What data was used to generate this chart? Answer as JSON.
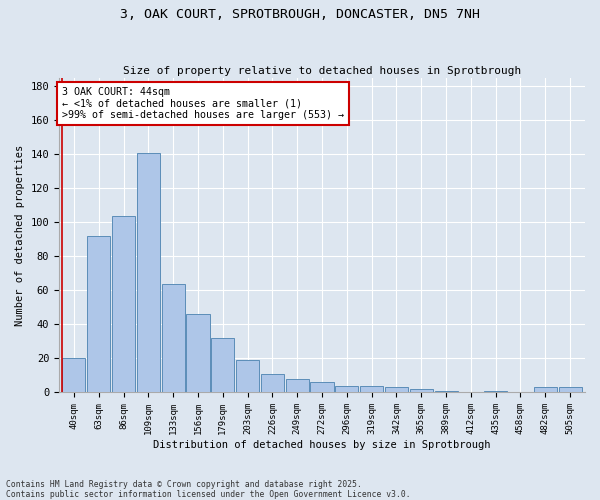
{
  "title1": "3, OAK COURT, SPROTBROUGH, DONCASTER, DN5 7NH",
  "title2": "Size of property relative to detached houses in Sprotbrough",
  "xlabel": "Distribution of detached houses by size in Sprotbrough",
  "ylabel": "Number of detached properties",
  "categories": [
    "40sqm",
    "63sqm",
    "86sqm",
    "109sqm",
    "133sqm",
    "156sqm",
    "179sqm",
    "203sqm",
    "226sqm",
    "249sqm",
    "272sqm",
    "296sqm",
    "319sqm",
    "342sqm",
    "365sqm",
    "389sqm",
    "412sqm",
    "435sqm",
    "458sqm",
    "482sqm",
    "505sqm"
  ],
  "values": [
    20,
    92,
    104,
    141,
    64,
    46,
    32,
    19,
    11,
    8,
    6,
    4,
    4,
    3,
    2,
    1,
    0,
    1,
    0,
    3,
    3
  ],
  "bar_color": "#aec6e8",
  "bar_edge_color": "#5b8db8",
  "background_color": "#dde6f0",
  "annotation_text": "3 OAK COURT: 44sqm\n← <1% of detached houses are smaller (1)\n>99% of semi-detached houses are larger (553) →",
  "annotation_box_color": "#ffffff",
  "annotation_box_edge": "#cc0000",
  "vline_color": "#cc0000",
  "ylim": [
    0,
    185
  ],
  "yticks": [
    0,
    20,
    40,
    60,
    80,
    100,
    120,
    140,
    160,
    180
  ],
  "footer1": "Contains HM Land Registry data © Crown copyright and database right 2025.",
  "footer2": "Contains public sector information licensed under the Open Government Licence v3.0."
}
